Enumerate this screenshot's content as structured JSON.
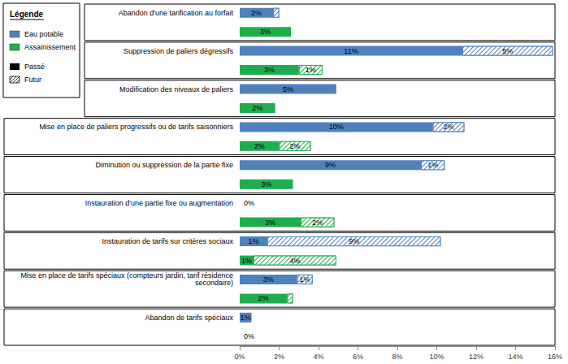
{
  "chart_data": {
    "type": "bar",
    "orientation": "horizontal",
    "stacked": true,
    "data_labels": true,
    "grid": false,
    "legend": "upper left",
    "legend_title": "Légende",
    "categories": [
      "Abandon d'une tarification au forfait",
      "Suppression de paliers dégressifs",
      "Modification des niveaux de paliers",
      "Mise en place de paliers progressifs ou de tarifs saisonniers",
      "Diminution ou suppression de la partie fixe",
      "Instauration d'une partie fixe ou augmentation",
      "Instauration de tarifs sur critères sociaux",
      "Mise en place de tarifs spéciaux (compteurs jardin, tarif résidence secondaire)",
      "Abandon de tarifs spéciaux"
    ],
    "xlim": [
      0,
      16
    ],
    "xticks": [
      {
        "value": 0,
        "label": "0%"
      },
      {
        "value": 2,
        "label": "2%"
      },
      {
        "value": 4,
        "label": "4%"
      },
      {
        "value": 6,
        "label": "6%"
      },
      {
        "value": 8,
        "label": "8%"
      },
      {
        "value": 10,
        "label": "10%"
      },
      {
        "value": 12,
        "label": "12%"
      },
      {
        "value": 14,
        "label": "14%"
      },
      {
        "value": 16,
        "label": "16%"
      }
    ],
    "series": [
      {
        "name": "Eau potable",
        "color": "#4f81bd",
        "segments": [
          {
            "name": "Passé",
            "values": [
              1.7,
              11.3,
              4.9,
              9.8,
              9.2,
              0,
              1.4,
              2.9,
              0.6
            ],
            "value_labels": [
              "2%",
              "11%",
              "5%",
              "10%",
              "9%",
              "0%",
              "1%",
              "3%",
              "1%"
            ]
          },
          {
            "name": "Futur",
            "values": [
              0.3,
              4.6,
              null,
              1.6,
              1.2,
              null,
              8.8,
              0.8,
              null
            ],
            "value_labels": [
              null,
              "5%",
              null,
              "2%",
              "1%",
              null,
              "9%",
              "1%",
              null
            ]
          }
        ]
      },
      {
        "name": "Assainissement",
        "color": "#1fae4e",
        "segments": [
          {
            "name": "Passé",
            "values": [
              2.6,
              3.0,
              1.8,
              2.0,
              2.7,
              3.1,
              0.7,
              2.4,
              0
            ],
            "value_labels": [
              "3%",
              "3%",
              "2%",
              "2%",
              "3%",
              "3%",
              "1%",
              "2%",
              "0%"
            ]
          },
          {
            "name": "Futur",
            "values": [
              null,
              1.2,
              null,
              1.6,
              null,
              1.7,
              4.2,
              0.3,
              null
            ],
            "value_labels": [
              null,
              "1%",
              null,
              "2%",
              null,
              "2%",
              "4%",
              null,
              null
            ]
          }
        ]
      }
    ]
  }
}
